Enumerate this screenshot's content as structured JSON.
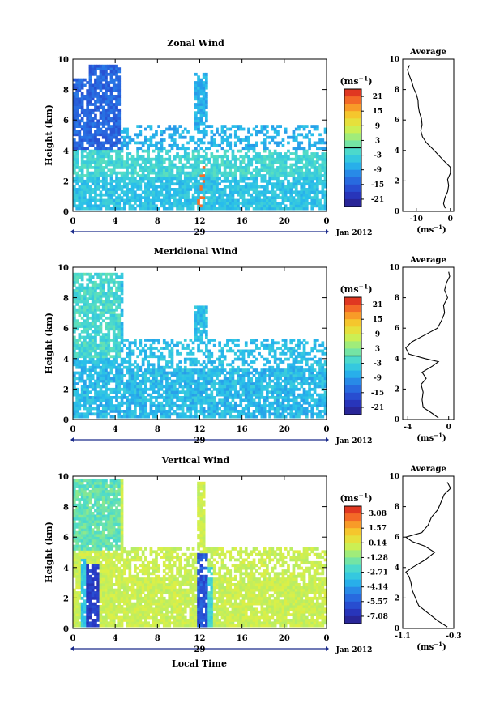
{
  "page": {
    "xlabel": "Local Time",
    "date_label": "Jan 2012",
    "day_label": "29"
  },
  "chart_data": [
    {
      "type": "heatmap",
      "title": "Zonal Wind",
      "ylabel": "Height (km)",
      "xlim": [
        0,
        24
      ],
      "ylim": [
        0,
        10
      ],
      "xticks": [
        "0",
        "4",
        "8",
        "12",
        "16",
        "20",
        "0"
      ],
      "yticks": [
        "0",
        "2",
        "4",
        "6",
        "8",
        "10"
      ],
      "colorbar": {
        "unit": "(ms⁻¹)",
        "vmin": -24,
        "vmax": 24,
        "ticks": [
          "21",
          "15",
          "9",
          "3",
          "-3",
          "-9",
          "-15",
          "-21"
        ],
        "zero_line": 0
      },
      "profile": {
        "title": "Average",
        "unit": "(ms⁻¹)",
        "xlim": [
          -14,
          1
        ],
        "xticks": [
          "-10",
          "0"
        ],
        "xtick_vals": [
          -10,
          0
        ],
        "yticks": [
          "0",
          "2",
          "4",
          "6",
          "8",
          "10"
        ],
        "points": [
          [
            -1.5,
            0.2
          ],
          [
            -2,
            0.5
          ],
          [
            -1.6,
            0.9
          ],
          [
            -0.8,
            1.3
          ],
          [
            -0.5,
            1.7
          ],
          [
            -0.8,
            2.1
          ],
          [
            0,
            2.5
          ],
          [
            0,
            2.9
          ],
          [
            -1.8,
            3.3
          ],
          [
            -3.5,
            3.7
          ],
          [
            -5.2,
            4.1
          ],
          [
            -7,
            4.5
          ],
          [
            -8.2,
            4.9
          ],
          [
            -8.7,
            5.3
          ],
          [
            -8.3,
            5.7
          ],
          [
            -8.5,
            6.1
          ],
          [
            -9.1,
            6.5
          ],
          [
            -9.4,
            6.9
          ],
          [
            -9.5,
            7.3
          ],
          [
            -10,
            7.7
          ],
          [
            -10.8,
            8.1
          ],
          [
            -11.3,
            8.5
          ],
          [
            -12,
            8.9
          ],
          [
            -12.6,
            9.3
          ],
          [
            -12,
            9.6
          ]
        ]
      }
    },
    {
      "type": "heatmap",
      "title": "Meridional Wind",
      "ylabel": "Height (km)",
      "xlim": [
        0,
        24
      ],
      "ylim": [
        0,
        10
      ],
      "xticks": [
        "0",
        "4",
        "8",
        "12",
        "16",
        "20",
        "0"
      ],
      "yticks": [
        "0",
        "2",
        "4",
        "6",
        "8",
        "10"
      ],
      "colorbar": {
        "unit": "(ms⁻¹)",
        "vmin": -24,
        "vmax": 24,
        "ticks": [
          "21",
          "15",
          "9",
          "3",
          "-3",
          "-9",
          "-15",
          "-21"
        ],
        "zero_line": 0
      },
      "profile": {
        "title": "Average",
        "unit": "(ms⁻¹)",
        "xlim": [
          -4.5,
          0.5
        ],
        "xticks": [
          "-4",
          "0"
        ],
        "xtick_vals": [
          -4,
          0
        ],
        "yticks": [
          "0",
          "2",
          "4",
          "6",
          "8",
          "10"
        ],
        "points": [
          [
            -1,
            0.1
          ],
          [
            -1.6,
            0.4
          ],
          [
            -2.5,
            0.8
          ],
          [
            -2.6,
            1.3
          ],
          [
            -2.5,
            1.8
          ],
          [
            -2.7,
            2.3
          ],
          [
            -2.2,
            2.7
          ],
          [
            -2.6,
            3.1
          ],
          [
            -1.6,
            3.5
          ],
          [
            -1,
            3.8
          ],
          [
            -2.3,
            4
          ],
          [
            -3.9,
            4.3
          ],
          [
            -4.2,
            4.7
          ],
          [
            -3.6,
            5.1
          ],
          [
            -2.2,
            5.6
          ],
          [
            -1.1,
            6
          ],
          [
            -0.7,
            6.5
          ],
          [
            -0.4,
            7
          ],
          [
            -0.5,
            7.5
          ],
          [
            -0.1,
            8
          ],
          [
            -0.4,
            8.5
          ],
          [
            -0.2,
            9
          ],
          [
            0.1,
            9.4
          ],
          [
            0,
            9.7
          ]
        ]
      }
    },
    {
      "type": "heatmap",
      "title": "Vertical Wind",
      "ylabel": "Height (km)",
      "xlim": [
        0,
        24
      ],
      "ylim": [
        0,
        10
      ],
      "xticks": [
        "0",
        "4",
        "8",
        "12",
        "16",
        "20",
        "0"
      ],
      "yticks": [
        "0",
        "2",
        "4",
        "6",
        "8",
        "10"
      ],
      "colorbar": {
        "unit": "(ms⁻¹)",
        "vmin": -8.0,
        "vmax": 3.8,
        "ticks": [
          "3.08",
          "1.57",
          "0.14",
          "-1.28",
          "-2.71",
          "-4.14",
          "-5.57",
          "-7.08"
        ]
      },
      "profile": {
        "title": "Average",
        "unit": "(ms⁻¹)",
        "xlim": [
          -1.1,
          -0.3
        ],
        "xticks": [
          "-1.1",
          "-0.3"
        ],
        "xtick_vals": [
          -1.1,
          -0.3
        ],
        "yticks": [
          "0",
          "2",
          "4",
          "6",
          "8",
          "10"
        ],
        "points": [
          [
            -0.4,
            0.1
          ],
          [
            -0.55,
            0.5
          ],
          [
            -0.7,
            1
          ],
          [
            -0.85,
            1.5
          ],
          [
            -0.9,
            2
          ],
          [
            -0.95,
            2.5
          ],
          [
            -0.97,
            3
          ],
          [
            -1.0,
            3.4
          ],
          [
            -1.05,
            3.7
          ],
          [
            -0.95,
            4
          ],
          [
            -0.75,
            4.5
          ],
          [
            -0.6,
            5
          ],
          [
            -0.75,
            5.4
          ],
          [
            -0.95,
            5.7
          ],
          [
            -1.05,
            6
          ],
          [
            -0.8,
            6.3
          ],
          [
            -0.7,
            6.8
          ],
          [
            -0.65,
            7.3
          ],
          [
            -0.55,
            7.8
          ],
          [
            -0.5,
            8.3
          ],
          [
            -0.45,
            8.8
          ],
          [
            -0.35,
            9.2
          ],
          [
            -0.4,
            9.6
          ]
        ]
      }
    }
  ]
}
